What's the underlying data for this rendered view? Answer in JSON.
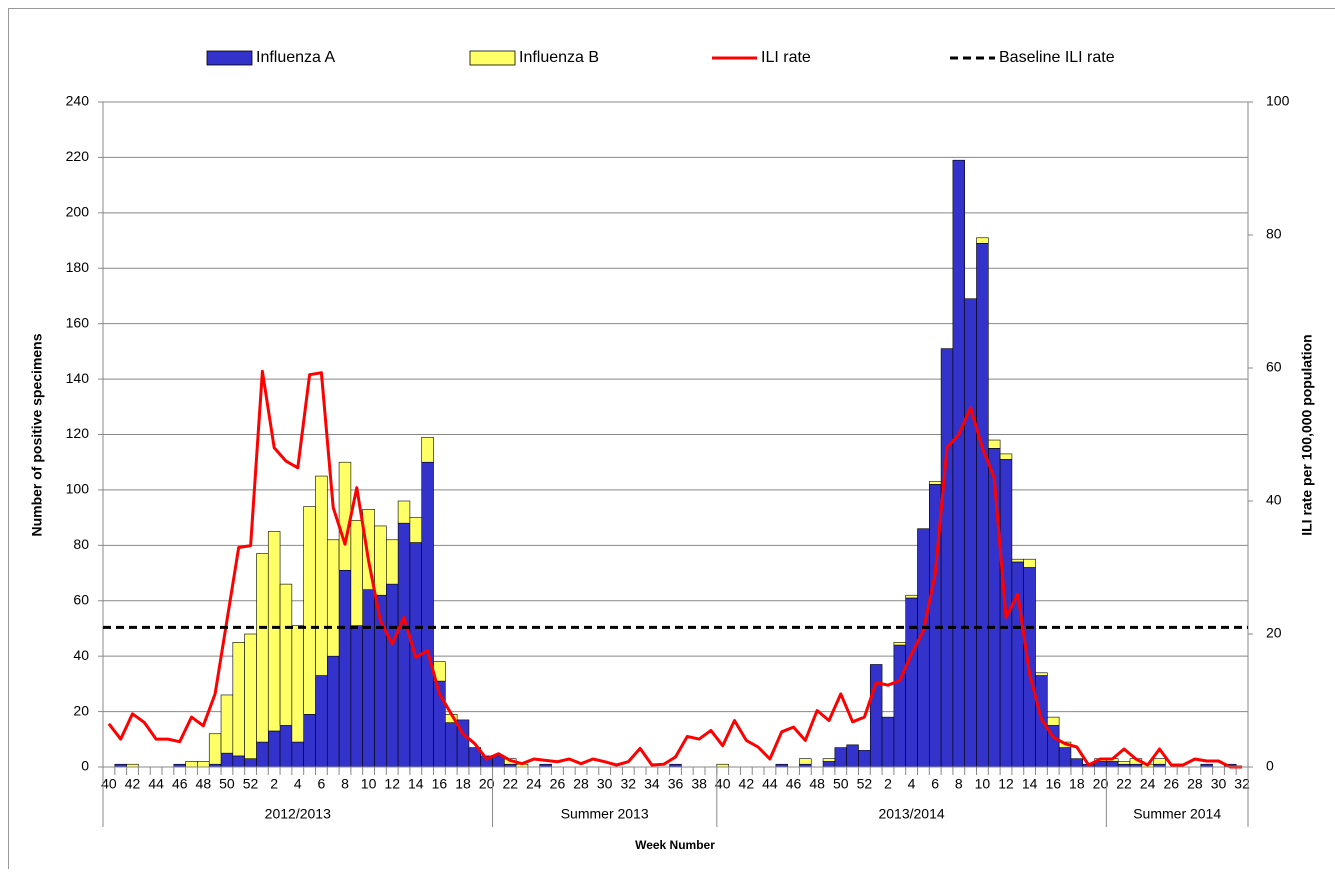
{
  "chart_data": {
    "type": "bar",
    "stacked": true,
    "y_label": "Number of positive specimens",
    "y2_label": "ILI rate per 100,000 population",
    "x_label": "Week Number",
    "categories": [
      "40",
      null,
      "42",
      null,
      "44",
      null,
      "46",
      null,
      "48",
      null,
      "50",
      null,
      "52",
      null,
      "2",
      null,
      "4",
      null,
      "6",
      null,
      "8",
      null,
      "10",
      null,
      "12",
      null,
      "14",
      null,
      "16",
      null,
      "18",
      null,
      "20",
      null,
      "22",
      null,
      "24",
      null,
      "26",
      null,
      "28",
      null,
      "30",
      null,
      "32",
      null,
      "34",
      null,
      "36",
      null,
      "38",
      null,
      "40",
      null,
      "42",
      null,
      "44",
      null,
      "46",
      null,
      "48",
      null,
      "50",
      null,
      "52",
      null,
      "2",
      null,
      "4",
      null,
      "6",
      null,
      "8",
      null,
      "10",
      null,
      "12",
      null,
      "14",
      null,
      "16",
      null,
      "18",
      null,
      "20",
      null,
      "22",
      null,
      "24",
      null,
      "26",
      null,
      "28",
      null,
      "30",
      null,
      "32"
    ],
    "groups": [
      {
        "label": "2012/2013",
        "span": 33
      },
      {
        "label": "Summer 2013",
        "span": 19
      },
      {
        "label": "2013/2014",
        "span": 33
      },
      {
        "label": "Summer 2014",
        "span": 12
      }
    ],
    "series": [
      {
        "name": "Influenza A",
        "type": "bar",
        "color": "#3333cc",
        "values": [
          0,
          1,
          0,
          0,
          0,
          0,
          1,
          0,
          0,
          1,
          5,
          4,
          3,
          9,
          13,
          15,
          9,
          19,
          33,
          40,
          71,
          51,
          64,
          62,
          66,
          88,
          81,
          110,
          31,
          16,
          17,
          7,
          4,
          4,
          1,
          0,
          0,
          1,
          0,
          0,
          0,
          0,
          0,
          0,
          0,
          0,
          0,
          0,
          1,
          0,
          0,
          0,
          0,
          0,
          0,
          0,
          0,
          1,
          0,
          1,
          0,
          2,
          7,
          8,
          6,
          37,
          18,
          44,
          61,
          86,
          102,
          151,
          219,
          169,
          189,
          115,
          111,
          74,
          72,
          33,
          15,
          7,
          3,
          1,
          2,
          2,
          1,
          1,
          0,
          1,
          0,
          0,
          0,
          1,
          0,
          1,
          0
        ]
      },
      {
        "name": "Influenza B",
        "type": "bar",
        "color": "#ffff66",
        "values": [
          0,
          0,
          1,
          0,
          0,
          0,
          0,
          2,
          2,
          11,
          21,
          41,
          45,
          68,
          72,
          51,
          42,
          75,
          72,
          42,
          39,
          38,
          29,
          25,
          16,
          8,
          9,
          9,
          7,
          3,
          0,
          0,
          0,
          0,
          2,
          1,
          0,
          0,
          0,
          0,
          0,
          0,
          0,
          0,
          0,
          0,
          0,
          0,
          0,
          0,
          0,
          0,
          1,
          0,
          0,
          0,
          0,
          0,
          0,
          2,
          0,
          1,
          0,
          0,
          0,
          0,
          0,
          1,
          1,
          0,
          1,
          0,
          0,
          0,
          2,
          3,
          2,
          1,
          3,
          1,
          3,
          2,
          0,
          0,
          1,
          1,
          1,
          2,
          1,
          2,
          0,
          0,
          0,
          0,
          0,
          0,
          0
        ]
      },
      {
        "name": "ILI rate",
        "type": "line",
        "axis": "y2",
        "color": "#ff0000",
        "values": [
          6.5,
          4.2,
          8,
          6.7,
          4.2,
          4.2,
          3.8,
          7.5,
          6.2,
          11,
          22,
          33,
          33.3,
          59.5,
          48,
          46,
          45,
          59,
          59.3,
          39,
          33.5,
          42,
          31,
          22,
          18.5,
          22.5,
          16.5,
          17.5,
          11,
          8,
          5,
          3.5,
          1.2,
          2,
          1,
          0.5,
          1.2,
          1,
          0.8,
          1.2,
          0.5,
          1.2,
          0.8,
          0.3,
          0.8,
          2.8,
          0.3,
          0.4,
          1.5,
          4.6,
          4.2,
          5.5,
          3.2,
          7,
          4,
          3,
          1.2,
          5.3,
          6,
          4,
          8.5,
          7,
          11,
          6.8,
          7.5,
          12.7,
          12.3,
          13,
          17,
          20.5,
          29,
          48,
          50,
          54,
          48,
          43.5,
          22.5,
          26,
          14,
          7.2,
          4.5,
          3.5,
          3,
          0.3,
          1.2,
          1.2,
          2.7,
          1.2,
          0.3,
          2.7,
          0.3,
          0.3,
          1.2,
          0.9,
          0.9,
          0,
          0
        ]
      },
      {
        "name": "Baseline ILI rate",
        "type": "hline",
        "axis": "y2",
        "color": "#000000",
        "dashed": true,
        "value": 21
      }
    ],
    "ylim": [
      0,
      240
    ],
    "yticks": [
      0,
      20,
      40,
      60,
      80,
      100,
      120,
      140,
      160,
      180,
      200,
      220,
      240
    ],
    "y2lim": [
      0,
      100
    ],
    "y2ticks": [
      0,
      20,
      40,
      60,
      80,
      100
    ],
    "grid": true,
    "legend": "top"
  }
}
